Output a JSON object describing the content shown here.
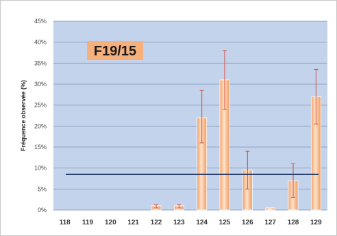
{
  "chart_data": {
    "type": "bar",
    "title": "F19/15",
    "xlabel": "",
    "ylabel": "Fréquence observée (%)",
    "categories": [
      "118",
      "119",
      "120",
      "121",
      "122",
      "123",
      "124",
      "125",
      "126",
      "127",
      "128",
      "129"
    ],
    "series": [
      {
        "values": [
          0,
          0,
          0,
          0,
          1,
          1,
          22,
          31,
          9.5,
          0.5,
          7,
          27
        ],
        "error_low": [
          0,
          0,
          0,
          0,
          0.5,
          0.5,
          16,
          24,
          5,
          0,
          3,
          20.5
        ],
        "error_high": [
          0,
          0,
          0,
          0,
          1.3,
          1.3,
          28.5,
          38,
          14,
          0.8,
          11,
          33.5
        ]
      }
    ],
    "reference_line": 8.5,
    "ylim": [
      0,
      45
    ],
    "yticks": [
      "0%",
      "5%",
      "10%",
      "15%",
      "20%",
      "25%",
      "30%",
      "35%",
      "40%",
      "45%"
    ],
    "grid": true,
    "colors": {
      "plot_background": "#c4d3ec",
      "bar_fill": "#f4ad7a",
      "bar_highlight": "#fde3cc",
      "error_bar": "#d94a3a",
      "reference_line": "#1f3464",
      "title_box": "#f6b07c"
    }
  }
}
